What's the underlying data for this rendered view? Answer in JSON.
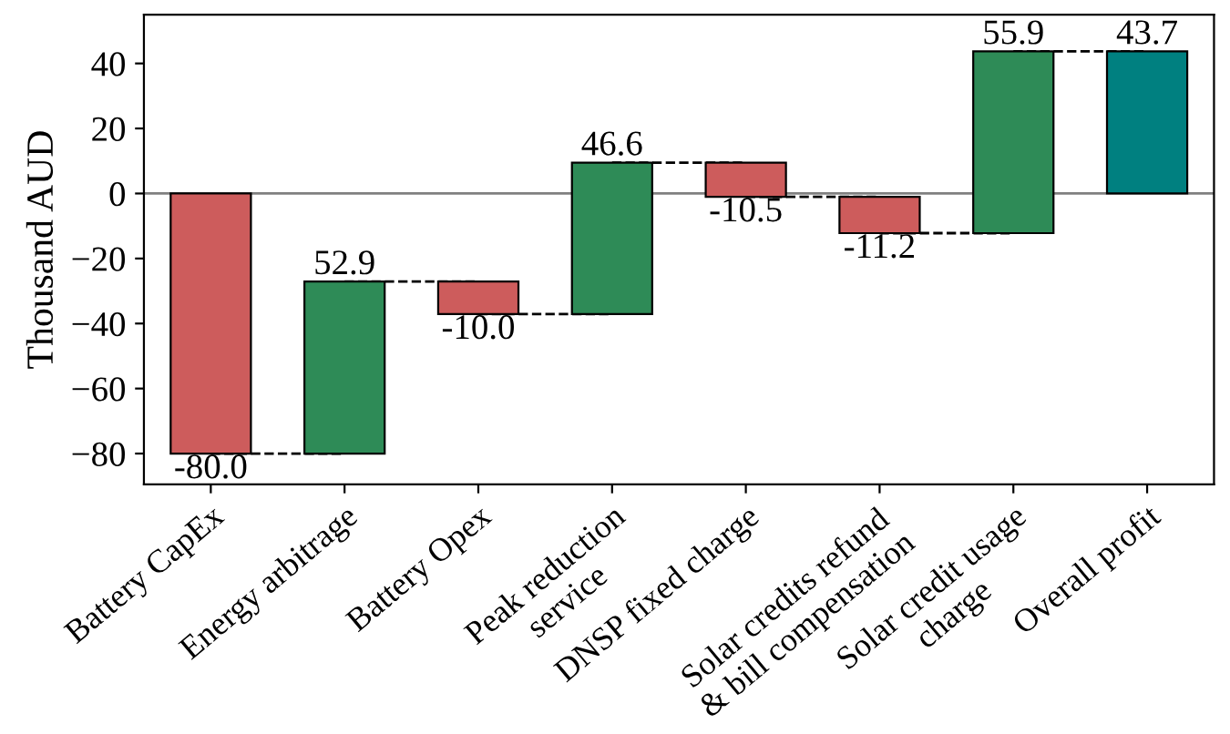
{
  "chart_data": {
    "type": "bar",
    "ylabel": "Thousand AUD",
    "categories": [
      "Battery CapEx",
      "Energy arbitrage",
      "Battery Opex",
      "Peak reduction\nservice",
      "DNSP fixed charge",
      "Solar credits refund\n& bill compensation",
      "Solar credit usage\ncharge",
      "Overall profit"
    ],
    "values": [
      -80.0,
      52.9,
      -10.0,
      46.6,
      -10.5,
      -11.2,
      55.9,
      43.7
    ],
    "base": [
      0,
      -80.0,
      -27.1,
      -37.1,
      9.5,
      -1.0,
      -12.2,
      0
    ],
    "colors": [
      "#cd5c5c",
      "#2e8b57",
      "#cd5c5c",
      "#2e8b57",
      "#cd5c5c",
      "#cd5c5c",
      "#2e8b57",
      "#008080"
    ],
    "value_labels": [
      "-80.0",
      "52.9",
      "-10.0",
      "46.6",
      "-10.5",
      "-11.2",
      "55.9",
      "43.7"
    ],
    "ylim": [
      -89.5,
      55
    ],
    "yticks": [
      {
        "value": -80,
        "label": "−80"
      },
      {
        "value": -60,
        "label": "−60"
      },
      {
        "value": -40,
        "label": "−40"
      },
      {
        "value": -20,
        "label": "−20"
      },
      0,
      20,
      40
    ],
    "ref_lines": [
      {
        "axis": "y",
        "value": 0,
        "color": "#808080"
      }
    ],
    "grid": false
  }
}
